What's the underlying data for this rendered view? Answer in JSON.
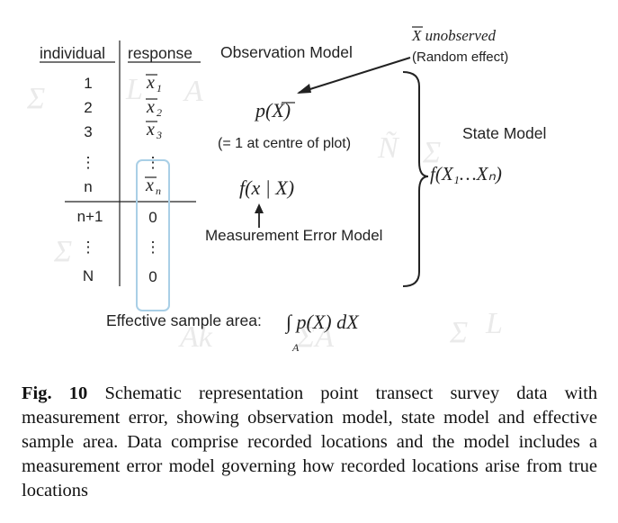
{
  "table": {
    "header_individual": "individual",
    "header_response": "response",
    "rows": [
      {
        "individual": "1",
        "response": "x",
        "sub": "1"
      },
      {
        "individual": "2",
        "response": "x",
        "sub": "2"
      },
      {
        "individual": "3",
        "response": "x",
        "sub": "3"
      },
      {
        "individual": "⋮",
        "response": "⋮",
        "sub": ""
      },
      {
        "individual": "n",
        "response": "x",
        "sub": "n"
      },
      {
        "individual": "n+1",
        "response": "0",
        "sub": ""
      },
      {
        "individual": "⋮",
        "response": "⋮",
        "sub": ""
      },
      {
        "individual": "N",
        "response": "0",
        "sub": ""
      }
    ]
  },
  "labels": {
    "observation_model": "Observation Model",
    "unobserved": "X unobserved",
    "random_effect": "(Random effect)",
    "p_of_x": "p(X)",
    "centre_note": "(= 1 at centre of plot)",
    "f_x_given_X": "f(x | X)",
    "measurement_error_model": "Measurement Error Model",
    "state_model": "State Model",
    "f_state": "f(X₁…Xₙ)",
    "effective_sample_area": "Effective sample area:",
    "integral": "∫ p(X) dX",
    "integral_sub": "A"
  },
  "caption": {
    "fig_label": "Fig. 10",
    "text": "Schematic representation point transect survey data with measurement error, showing observation model, state model and effective sample area. Data comprise recorded locations and the model includes a measurement error model governing how recorded locations arise from true locations"
  }
}
